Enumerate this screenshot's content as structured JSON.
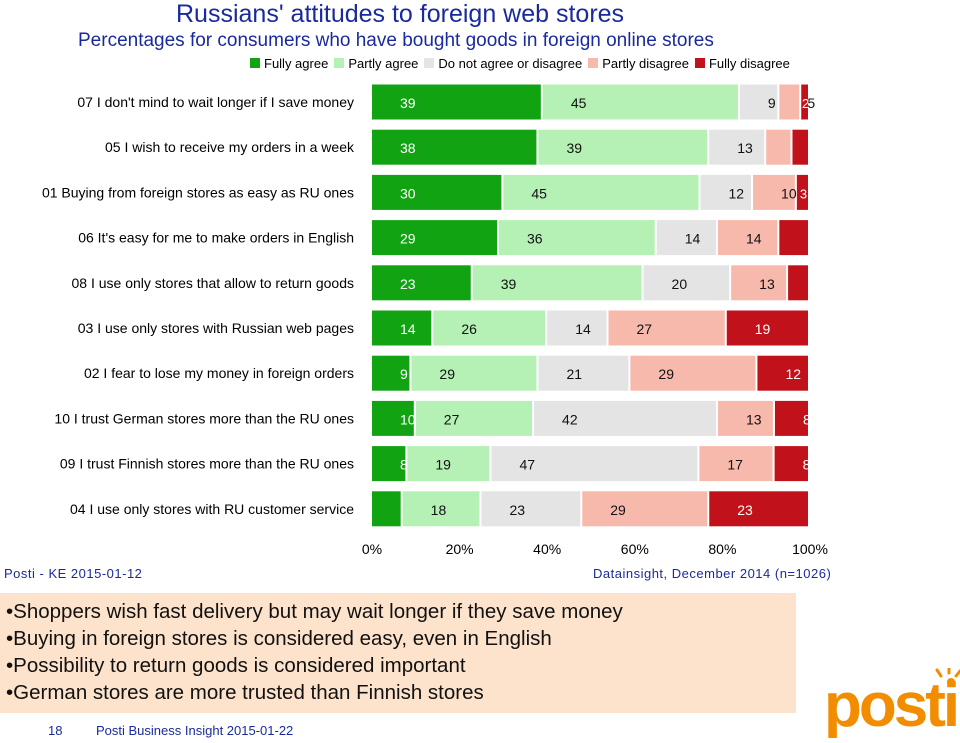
{
  "header": {
    "title": "Russians' attitudes to foreign web stores",
    "subtitle": "Percentages for consumers who have bought goods in foreign online stores"
  },
  "chart_data": {
    "type": "bar",
    "orientation": "horizontal",
    "stacked": true,
    "categories": [
      "07 I don't mind to wait longer if I save money",
      "05 I wish to receive my orders in a week",
      "01 Buying from foreign stores as easy as RU ones",
      "06 It's easy for me to make orders in English",
      "08 I use only stores that allow to return goods",
      "03 I use only stores with Russian web pages",
      "02 I fear to lose my money in foreign orders",
      "10 I trust German stores more than the RU ones",
      "09 I trust Finnish stores more than the RU ones",
      "04 I use only stores with RU customer service"
    ],
    "series": [
      {
        "name": "Fully agree",
        "color": "#12a312",
        "values": [
          39,
          38,
          30,
          29,
          23,
          14,
          9,
          10,
          8,
          7
        ]
      },
      {
        "name": "Partly agree",
        "color": "#b5f0b5",
        "values": [
          45,
          39,
          45,
          36,
          39,
          26,
          29,
          27,
          19,
          18
        ]
      },
      {
        "name": "Do not agree or disagree",
        "color": "#e4e4e4",
        "values": [
          9,
          13,
          12,
          14,
          20,
          14,
          21,
          42,
          47,
          23
        ]
      },
      {
        "name": "Partly disagree",
        "color": "#f8b9ad",
        "values": [
          5,
          6,
          10,
          14,
          13,
          27,
          29,
          13,
          17,
          29
        ]
      },
      {
        "name": "Fully disagree",
        "color": "#c1121b",
        "values": [
          2,
          4,
          3,
          7,
          5,
          19,
          12,
          8,
          8,
          23
        ]
      }
    ],
    "x_ticks": [
      "0%",
      "20%",
      "40%",
      "60%",
      "80%",
      "100%"
    ],
    "xlim": [
      0,
      100
    ],
    "legend_position": "top",
    "grid": false
  },
  "sources": {
    "left": "Posti - KE 2015-01-12",
    "right": "Datainsight, December 2014 (n=1026)"
  },
  "notes": [
    "•Shoppers wish fast delivery but may wait longer if they save money",
    "•Buying in foreign stores is considered easy, even in English",
    "•Possibility to return goods is considered important",
    "•German stores are more trusted than Finnish stores"
  ],
  "footer": {
    "page_number": "18",
    "text": "Posti Business Insight 2015-01-22"
  },
  "logo": {
    "text": "posti",
    "color": "#f28c00"
  }
}
